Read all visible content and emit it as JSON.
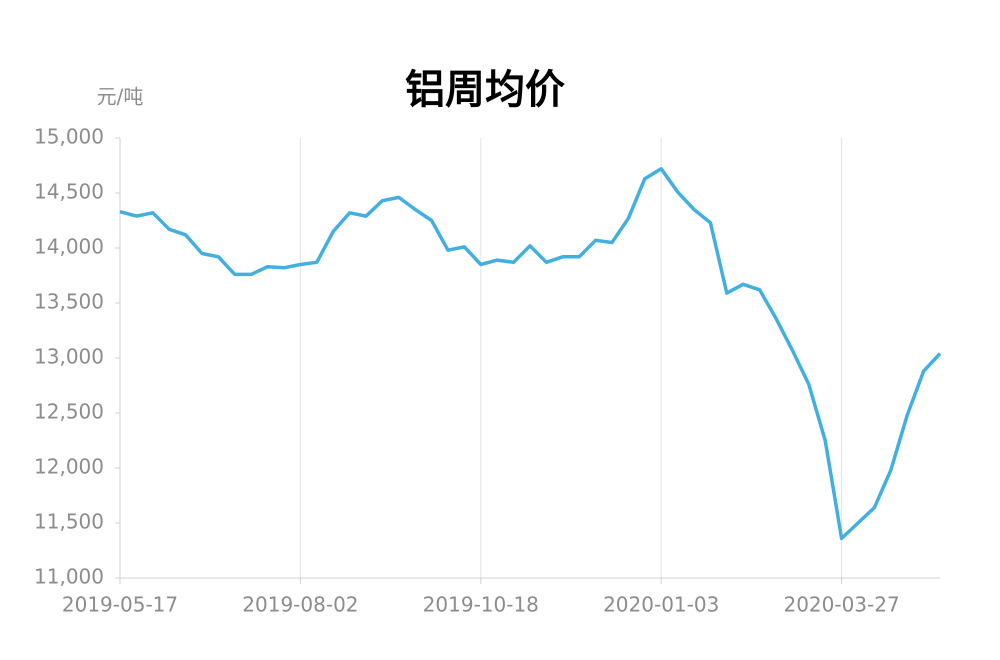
{
  "chart_data": {
    "type": "line",
    "title": "铝周均价",
    "y_label": "元/吨",
    "categories": [
      "2019-05-17",
      null,
      null,
      null,
      null,
      null,
      null,
      null,
      null,
      null,
      null,
      "2019-08-02",
      null,
      null,
      null,
      null,
      null,
      null,
      null,
      null,
      null,
      null,
      "2019-10-18",
      null,
      null,
      null,
      null,
      null,
      null,
      null,
      null,
      null,
      null,
      "2020-01-03",
      null,
      null,
      null,
      null,
      null,
      null,
      null,
      null,
      null,
      null,
      "2020-03-27",
      null,
      null,
      null,
      null,
      null,
      null
    ],
    "series": [
      {
        "name": "铝周均价",
        "color": "#41b0e0",
        "values": [
          14330,
          14290,
          14320,
          14170,
          14120,
          13950,
          13920,
          13760,
          13760,
          13830,
          13820,
          13850,
          13870,
          14150,
          14320,
          14290,
          14430,
          14460,
          14350,
          14250,
          13980,
          14010,
          13850,
          13890,
          13870,
          14020,
          13870,
          13920,
          13920,
          14070,
          14050,
          14270,
          14630,
          14720,
          14510,
          14350,
          14230,
          13590,
          13670,
          13620,
          13360,
          13070,
          12760,
          12250,
          11360,
          11500,
          11640,
          11980,
          12480,
          12880,
          13040
        ]
      }
    ],
    "ylim": [
      11000,
      15000
    ],
    "yticks": [
      {
        "value": 11000,
        "label": "11,000"
      },
      {
        "value": 11500,
        "label": "11,500"
      },
      {
        "value": 12000,
        "label": "12,000"
      },
      {
        "value": 12500,
        "label": "12,500"
      },
      {
        "value": 13000,
        "label": "13,000"
      },
      {
        "value": 13500,
        "label": "13,500"
      },
      {
        "value": 14000,
        "label": "14,000"
      },
      {
        "value": 14500,
        "label": "14,500"
      },
      {
        "value": 15000,
        "label": "15,000"
      }
    ],
    "grid": true
  }
}
